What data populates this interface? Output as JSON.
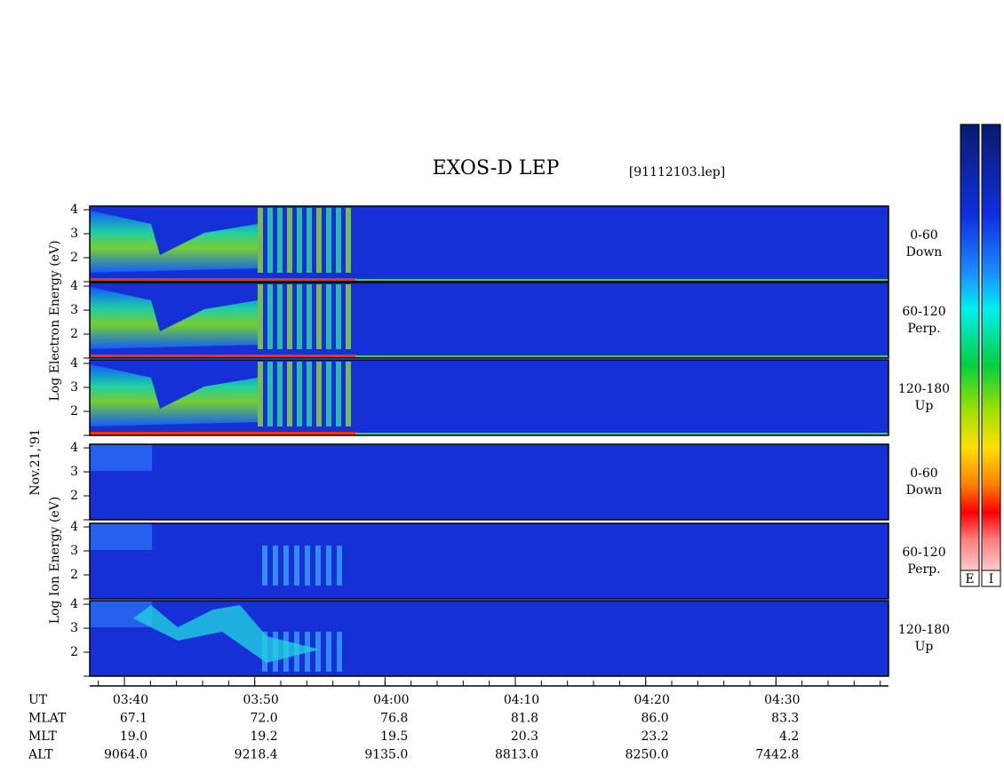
{
  "plot": {
    "title": "EXOS-D LEP",
    "file": "[91112103.lep]",
    "date": "Nov.21,'91",
    "ylim": [
      1,
      4.15
    ],
    "yticks": [
      2,
      3,
      4
    ],
    "groups": [
      {
        "ylabel": "Log Electron Energy (eV)",
        "panels": [
          [
            "0-60",
            "Down"
          ],
          [
            "60-120",
            "Perp."
          ],
          [
            "120-180",
            "Up"
          ]
        ]
      },
      {
        "ylabel": "Log Ion Energy (eV)",
        "panels": [
          [
            "0-60",
            "Down"
          ],
          [
            "60-120",
            "Perp."
          ],
          [
            "120-180",
            "Up"
          ]
        ]
      }
    ],
    "time_ticks": [
      "03:40",
      "03:50",
      "04:00",
      "04:10",
      "04:20",
      "04:30"
    ],
    "ephemeris": [
      {
        "name": "UT"
      },
      {
        "name": "MLAT",
        "values": [
          "67.1",
          "72.0",
          "76.8",
          "81.8",
          "86.0",
          "83.3"
        ]
      },
      {
        "name": "MLT",
        "values": [
          "19.0",
          "19.2",
          "19.5",
          "20.3",
          "23.2",
          "4.2"
        ]
      },
      {
        "name": "ALT",
        "values": [
          "9064.0",
          "9218.4",
          "9135.0",
          "8813.0",
          "8250.0",
          "7442.8"
        ]
      }
    ],
    "colorbars": [
      "E",
      "I"
    ]
  }
}
